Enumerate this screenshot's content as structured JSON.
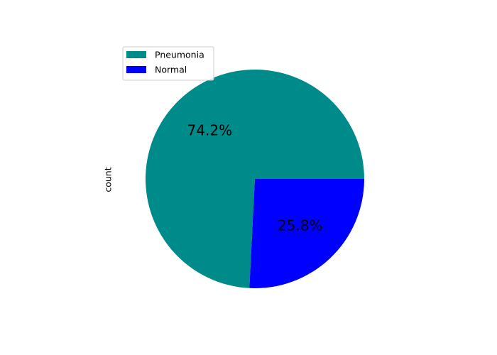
{
  "chart_data": {
    "type": "pie",
    "ylabel": "count",
    "slices": [
      {
        "label": "Pneumonia",
        "pct_label": "74.2%",
        "value": 74.2,
        "color": "#008b8b"
      },
      {
        "label": "Normal",
        "pct_label": "25.8%",
        "value": 25.8,
        "color": "#0000ff"
      }
    ],
    "start_angle_deg": 0,
    "direction": "counterclockwise",
    "legend_position": "upper-left"
  }
}
